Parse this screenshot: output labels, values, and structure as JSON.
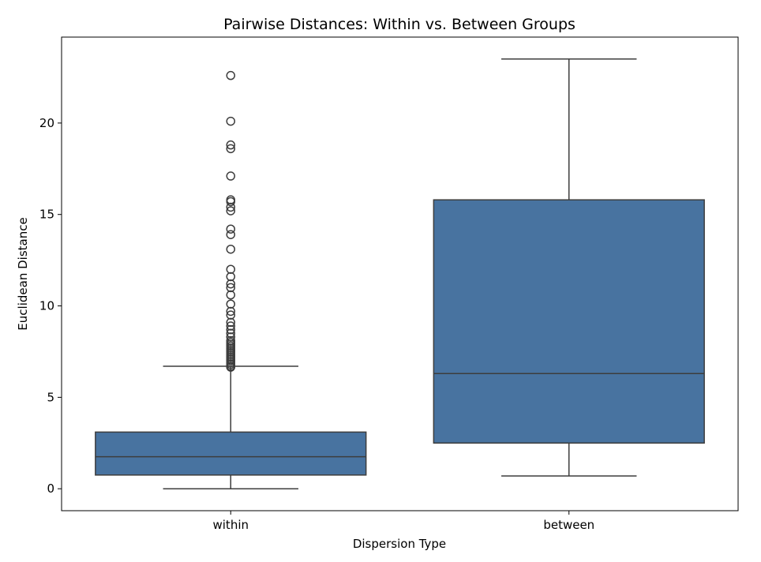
{
  "chart_data": {
    "type": "box",
    "title": "Pairwise Distances: Within vs. Between Groups",
    "xlabel": "Dispersion Type",
    "ylabel": "Euclidean Distance",
    "categories": [
      "within",
      "between"
    ],
    "ylim": [
      -1.2,
      24.7
    ],
    "yticks": [
      0,
      5,
      10,
      15,
      20
    ],
    "grid": false,
    "box_color": "#4873a0",
    "line_color": "#3d3d3d",
    "boxes": [
      {
        "category": "within",
        "whisker_low": 0,
        "q1": 0.75,
        "median": 1.75,
        "q3": 3.1,
        "whisker_high": 6.7,
        "outliers": [
          6.65,
          6.7,
          6.8,
          6.9,
          7.0,
          7.1,
          7.2,
          7.3,
          7.4,
          7.5,
          7.6,
          7.7,
          7.8,
          7.9,
          8.0,
          8.1,
          8.3,
          8.5,
          8.7,
          8.9,
          9.1,
          9.5,
          9.7,
          10.1,
          10.6,
          11.0,
          11.2,
          11.6,
          12.0,
          13.1,
          13.9,
          14.2,
          15.2,
          15.4,
          15.7,
          15.8,
          17.1,
          18.6,
          18.8,
          20.1,
          22.6
        ]
      },
      {
        "category": "between",
        "whisker_low": 0.7,
        "q1": 2.5,
        "median": 6.3,
        "q3": 15.8,
        "whisker_high": 23.5,
        "outliers": []
      }
    ]
  }
}
